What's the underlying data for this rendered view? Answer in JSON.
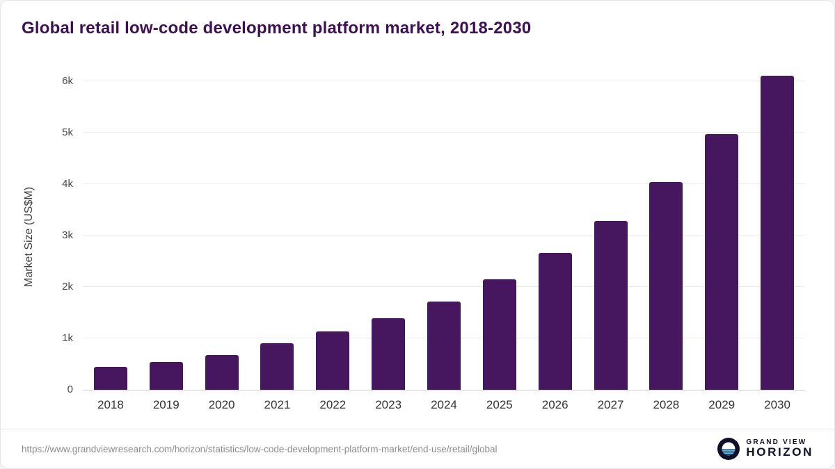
{
  "title": "Global retail low-code development platform market, 2018-2030",
  "chart_data": {
    "type": "bar",
    "title": "Global retail low-code development platform market, 2018-2030",
    "xlabel": "",
    "ylabel": "Market Size (US$M)",
    "categories": [
      "2018",
      "2019",
      "2020",
      "2021",
      "2022",
      "2023",
      "2024",
      "2025",
      "2026",
      "2027",
      "2028",
      "2029",
      "2030"
    ],
    "values": [
      440,
      535,
      675,
      905,
      1130,
      1395,
      1720,
      2150,
      2660,
      3290,
      4050,
      4980,
      6120
    ],
    "ylim": [
      0,
      6250
    ],
    "yticks": [
      {
        "value": 0,
        "label": "0"
      },
      {
        "value": 1000,
        "label": "1k"
      },
      {
        "value": 2000,
        "label": "2k"
      },
      {
        "value": 3000,
        "label": "3k"
      },
      {
        "value": 4000,
        "label": "4k"
      },
      {
        "value": 5000,
        "label": "5k"
      },
      {
        "value": 6000,
        "label": "6k"
      }
    ],
    "grid": true,
    "legend_position": "none",
    "bar_color": "#46175E"
  },
  "colors": {
    "title": "#3C1053",
    "bar": "#46175E",
    "grid": "#ECECEC",
    "axis": "#CFCFCF",
    "tick_text": "#4A4A4A",
    "source_text": "#8C8C8C",
    "logo_dark": "#10102A",
    "logo_teal": "#45C2E8"
  },
  "footer": {
    "source_url": "https://www.grandviewresearch.com/horizon/statistics/low-code-development-platform-market/end-use/retail/global",
    "logo": {
      "line1": "GRAND VIEW",
      "line2": "HORIZON"
    }
  }
}
